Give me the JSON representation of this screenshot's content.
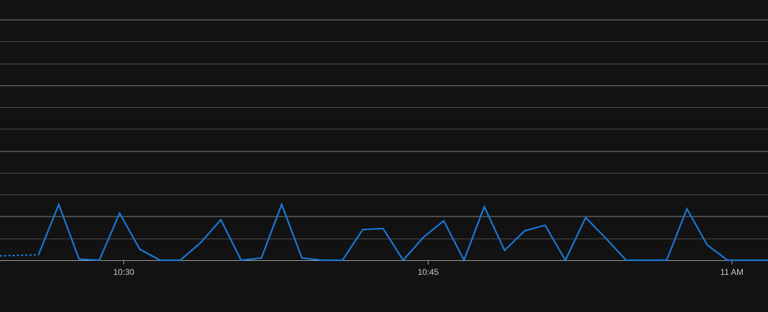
{
  "chart_data": {
    "type": "line",
    "title": "",
    "xlabel": "",
    "ylabel": "",
    "grid": true,
    "legend": "none",
    "x_tick_labels": [
      "10:30",
      "10:45",
      "11 AM"
    ],
    "x_tick_minutes": [
      30,
      45,
      60
    ],
    "x_range_minutes": [
      23.9,
      61.8
    ],
    "ylim": [
      0,
      11
    ],
    "series": [
      {
        "color": "#1a78d6",
        "segments": [
          {
            "style": "dashed",
            "x": [
              23.9,
              25.8
            ],
            "y": [
              0.2,
              0.25
            ]
          },
          {
            "style": "solid",
            "x": [
              25.8,
              26.8,
              27.8,
              28.8,
              29.8,
              30.8,
              31.8,
              32.8,
              33.8,
              34.8,
              35.8,
              36.8,
              37.8,
              38.8,
              39.8,
              40.8,
              41.8,
              42.8,
              43.8,
              44.8,
              45.8,
              46.8,
              47.8,
              48.8,
              49.8,
              50.8,
              51.8,
              52.8,
              53.8,
              54.8,
              55.8,
              56.8,
              57.8,
              58.8,
              59.8,
              60.8,
              61.8
            ],
            "y": [
              0.25,
              2.55,
              0.05,
              0.0,
              2.15,
              0.5,
              0.0,
              0.0,
              0.8,
              1.85,
              0.0,
              0.1,
              2.55,
              0.1,
              0.0,
              0.0,
              1.4,
              1.45,
              0.0,
              1.05,
              1.8,
              0.0,
              2.45,
              0.45,
              1.35,
              1.6,
              0.0,
              1.95,
              1.0,
              0.0,
              0.0,
              0.0,
              2.35,
              0.7,
              0.0,
              0.0,
              0.0
            ]
          }
        ]
      }
    ],
    "colors": {
      "background": "#121212",
      "gridline": "#4a4a4a",
      "gridline_major": "#5e5e5e",
      "axis": "#a0a0a0",
      "tick_label": "#c8c8c8",
      "line": "#1a78d6"
    }
  }
}
